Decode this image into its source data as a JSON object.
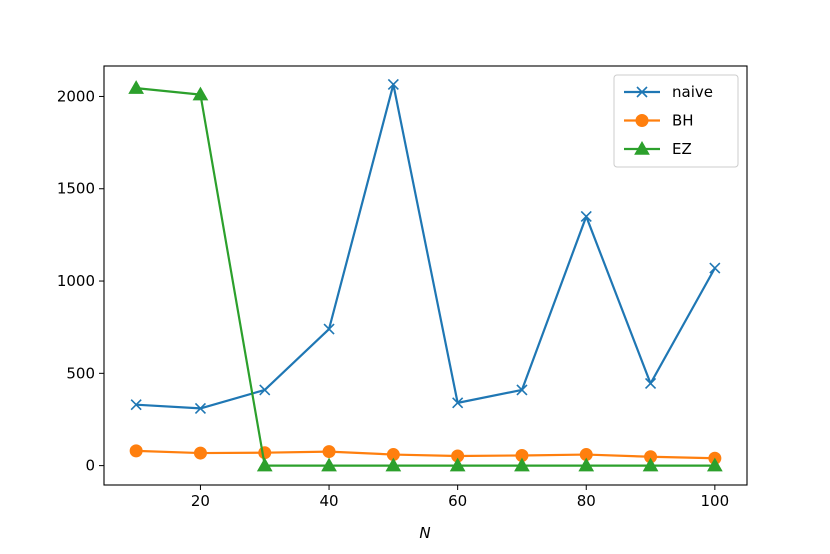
{
  "chart_data": {
    "type": "line",
    "title": "",
    "xlabel": "N",
    "ylabel": "",
    "x": [
      10,
      20,
      30,
      40,
      50,
      60,
      70,
      80,
      90,
      100
    ],
    "xlim": [
      5,
      105
    ],
    "ylim": [
      -105,
      2165
    ],
    "xticks": [
      20,
      40,
      60,
      80,
      100
    ],
    "yticks": [
      0,
      500,
      1000,
      1500,
      2000
    ],
    "grid": false,
    "legend_position": "top-right",
    "series": [
      {
        "name": "naive",
        "marker": "x",
        "color": "#1f77b4",
        "values": [
          330,
          310,
          410,
          740,
          2065,
          340,
          410,
          1350,
          445,
          1070
        ]
      },
      {
        "name": "BH",
        "marker": "circle",
        "color": "#ff7f0e",
        "values": [
          80,
          68,
          70,
          76,
          60,
          52,
          55,
          60,
          48,
          40
        ]
      },
      {
        "name": "EZ",
        "marker": "triangle",
        "color": "#2ca02c",
        "values": [
          2045,
          2010,
          0,
          0,
          0,
          0,
          0,
          0,
          0,
          0
        ]
      }
    ]
  }
}
